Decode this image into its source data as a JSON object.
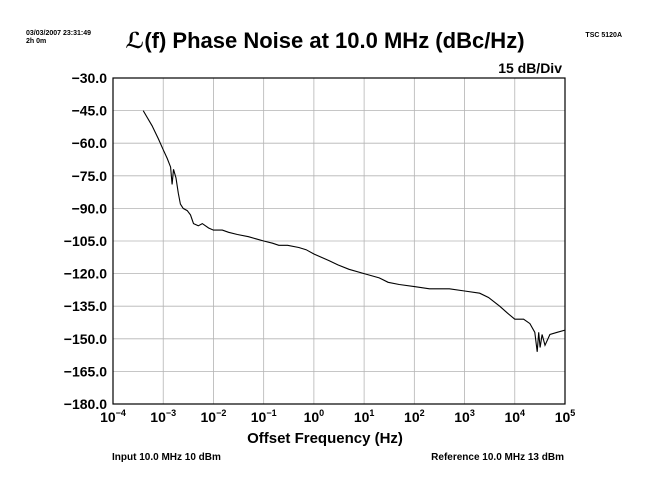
{
  "header": {
    "timestamp": "03/03/2007 23:31:49",
    "duration": "2h 0m",
    "model": "TSC 5120A",
    "scale": "15 dB/Div"
  },
  "footer": {
    "input": "Input 10.0 MHz 10 dBm",
    "reference": "Reference 10.0 MHz 13 dBm"
  },
  "chart_data": {
    "type": "line",
    "title": "ℒ(f) Phase Noise at 10.0 MHz (dBc/Hz)",
    "xlabel": "Offset Frequency (Hz)",
    "ylabel": "",
    "x_scale": "log",
    "xlim": [
      0.0001,
      100000
    ],
    "ylim": [
      -180,
      -30
    ],
    "x_tick_exponents": [
      "−4",
      "−3",
      "−2",
      "−1",
      "0",
      "1",
      "2",
      "3",
      "4",
      "5"
    ],
    "y_ticks": [
      "−30.0",
      "−45.0",
      "−60.0",
      "−75.0",
      "−90.0",
      "−105.0",
      "−120.0",
      "−135.0",
      "−150.0",
      "−165.0",
      "−180.0"
    ],
    "grid": true,
    "line_color": "#000000",
    "series": [
      {
        "x": [
          0.0004,
          0.0006,
          0.0008,
          0.001,
          0.0012,
          0.0014,
          0.0015,
          0.0016,
          0.0018,
          0.002,
          0.0022,
          0.0025,
          0.003,
          0.0035,
          0.004,
          0.005,
          0.006,
          0.008,
          0.01,
          0.015,
          0.02,
          0.03,
          0.05,
          0.07,
          0.1,
          0.15,
          0.2,
          0.3,
          0.5,
          0.7,
          1,
          2,
          3,
          5,
          10,
          20,
          30,
          50,
          100,
          200,
          300,
          500,
          1000,
          2000,
          3000,
          5000,
          7000,
          10000,
          15000,
          20000,
          25000,
          28000,
          30000,
          32000,
          35000,
          40000,
          50000,
          70000,
          100000
        ],
        "y": [
          -45,
          -52,
          -58,
          -63,
          -67,
          -71,
          -79,
          -72,
          -76,
          -83,
          -88,
          -90,
          -91,
          -93,
          -97,
          -98,
          -97,
          -99,
          -100,
          -100,
          -101,
          -102,
          -103,
          -104,
          -105,
          -106,
          -107,
          -107,
          -108,
          -109,
          -111,
          -114,
          -116,
          -118,
          -120,
          -122,
          -124,
          -125,
          -126,
          -127,
          -127,
          -127,
          -128,
          -129,
          -131,
          -135,
          -138,
          -141,
          -141,
          -143,
          -147,
          -156,
          -147,
          -154,
          -148,
          -153,
          -148,
          -147,
          -146
        ]
      }
    ]
  }
}
